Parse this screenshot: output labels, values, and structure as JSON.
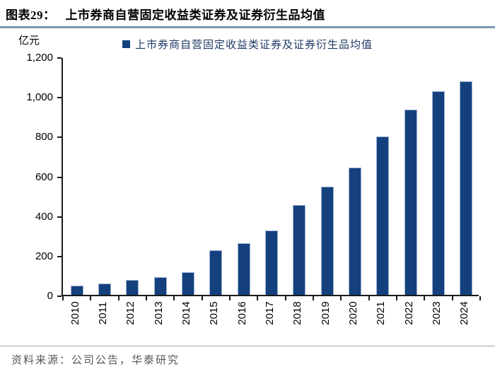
{
  "header": {
    "figure_label": "图表29：",
    "figure_title": "上市券商自营固定收益类证券及证券衍生品均值"
  },
  "chart_data": {
    "type": "bar",
    "title": "上市券商自营固定收益类证券及证券衍生品均值",
    "unit_label": "亿元",
    "legend": [
      "上市券商自营固定收益类证券及证券衍生品均值"
    ],
    "legend_position": "top-center",
    "categories": [
      "2010",
      "2011",
      "2012",
      "2013",
      "2014",
      "2015",
      "2016",
      "2017",
      "2018",
      "2019",
      "2020",
      "2021",
      "2022",
      "2023",
      "2024"
    ],
    "values": [
      45,
      57,
      76,
      89,
      113,
      226,
      259,
      325,
      453,
      546,
      641,
      797,
      933,
      1025,
      1074
    ],
    "ylim": [
      0,
      1200
    ],
    "ytick_step": 200,
    "ytick_labels": [
      "0",
      "200",
      "400",
      "600",
      "800",
      "1,000",
      "1,200"
    ],
    "grid": false,
    "bar_color": "#14417E"
  },
  "footer": {
    "source_text": "资料来源：公司公告，华泰研究"
  },
  "colors": {
    "bar": "#14417E",
    "axis": "#1a1a1a",
    "title_rule": "#7d98b3",
    "source_rule": "#9aa7b0",
    "legend_text": "#1f3864",
    "source_text": "#575757"
  }
}
